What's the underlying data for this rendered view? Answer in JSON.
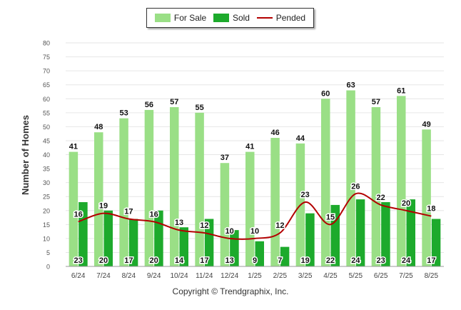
{
  "chart_data": {
    "type": "bar",
    "ylabel": "Number of Homes",
    "xlabel": "",
    "ylim": [
      0,
      80
    ],
    "ytick_step": 5,
    "grid": true,
    "legend_position": "top-center",
    "categories": [
      "6/24",
      "7/24",
      "8/24",
      "9/24",
      "10/24",
      "11/24",
      "12/24",
      "1/25",
      "2/25",
      "3/25",
      "4/25",
      "5/25",
      "6/25",
      "7/25",
      "8/25"
    ],
    "series": [
      {
        "name": "For Sale",
        "kind": "bar",
        "color": "#9ADF86",
        "values": [
          41,
          48,
          53,
          56,
          57,
          55,
          37,
          41,
          46,
          44,
          60,
          63,
          57,
          61,
          49
        ]
      },
      {
        "name": "Sold",
        "kind": "bar",
        "color": "#1DAA2C",
        "values": [
          23,
          20,
          17,
          20,
          14,
          17,
          13,
          9,
          7,
          19,
          22,
          24,
          23,
          24,
          17
        ]
      },
      {
        "name": "Pended",
        "kind": "line",
        "color": "#B30000",
        "values": [
          16,
          19,
          17,
          16,
          13,
          12,
          10,
          10,
          12,
          23,
          15,
          26,
          22,
          20,
          18
        ]
      }
    ]
  },
  "footer": {
    "copyright": "Copyright © Trendgraphix, Inc."
  }
}
